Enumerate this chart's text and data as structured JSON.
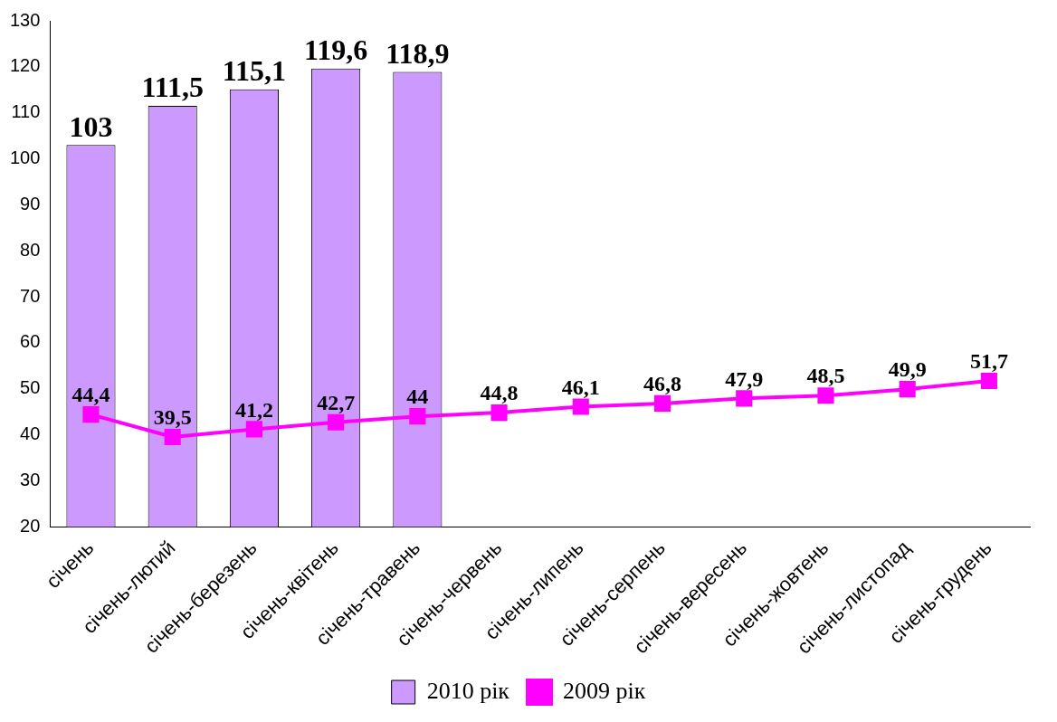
{
  "chart_data": {
    "type": "bar",
    "categories": [
      "січень",
      "січень-лютий",
      "січень-березень",
      "січень-квітень",
      "січень-травень",
      "січень-червень",
      "січень-липень",
      "січень-серпень",
      "січень-вересень",
      "січень-жовтень",
      "січень-листопад",
      "січень-грудень"
    ],
    "series": [
      {
        "name": "2010 рік",
        "color": "#cc99ff",
        "values": [
          103,
          111.5,
          115.1,
          119.6,
          118.9,
          null,
          null,
          null,
          null,
          null,
          null,
          null
        ],
        "value_labels": [
          "103",
          "111,5",
          "115,1",
          "119,6",
          "118,9",
          null,
          null,
          null,
          null,
          null,
          null,
          null
        ]
      },
      {
        "name": "2009 рік",
        "type": "line",
        "color": "#ff00ff",
        "values": [
          44.4,
          39.5,
          41.2,
          42.7,
          44,
          44.8,
          46.1,
          46.8,
          47.9,
          48.5,
          49.9,
          51.7
        ],
        "value_labels": [
          "44,4",
          "39,5",
          "41,2",
          "42,7",
          "44",
          "44,8",
          "46,1",
          "46,8",
          "47,9",
          "48,5",
          "49,9",
          "51,7"
        ]
      }
    ],
    "ylim": [
      20,
      130
    ],
    "yticks": [
      20,
      30,
      40,
      50,
      60,
      70,
      80,
      90,
      100,
      110,
      120,
      130
    ],
    "grid": false,
    "legend": "bottom",
    "marker": "square",
    "line_style": "solid"
  }
}
